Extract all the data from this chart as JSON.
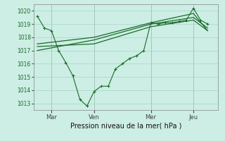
{
  "xlabel": "Pression niveau de la mer( hPa )",
  "background_color": "#cceee4",
  "grid_color": "#aad4c8",
  "line_color": "#1a6b2a",
  "ylim": [
    1012.5,
    1020.5
  ],
  "yticks": [
    1013,
    1014,
    1015,
    1016,
    1017,
    1018,
    1019,
    1020
  ],
  "xtick_labels": [
    "Mar",
    "Ven",
    "Mer",
    "Jeu"
  ],
  "xtick_positions": [
    2,
    8,
    16,
    22
  ],
  "xlim": [
    -0.5,
    25.5
  ],
  "line1_x": [
    0,
    1,
    2,
    3,
    4,
    5,
    6,
    7,
    8,
    9,
    10,
    11,
    12,
    13,
    14,
    15,
    16,
    17,
    18,
    19,
    20,
    21,
    22,
    23,
    24
  ],
  "line1_y": [
    1019.6,
    1018.7,
    1018.5,
    1017.0,
    1016.1,
    1015.1,
    1013.3,
    1012.8,
    1013.9,
    1014.3,
    1014.3,
    1015.6,
    1016.0,
    1016.4,
    1016.6,
    1017.0,
    1019.1,
    1019.0,
    1019.1,
    1019.1,
    1019.2,
    1019.3,
    1020.2,
    1019.3,
    1019.0
  ],
  "line2_x": [
    0,
    8,
    16,
    22,
    24
  ],
  "line2_y": [
    1017.3,
    1017.5,
    1018.8,
    1019.3,
    1018.5
  ],
  "line3_x": [
    0,
    8,
    16,
    22,
    24
  ],
  "line3_y": [
    1017.0,
    1017.8,
    1019.0,
    1019.5,
    1018.7
  ],
  "line4_x": [
    0,
    8,
    16,
    22,
    24
  ],
  "line4_y": [
    1017.5,
    1018.0,
    1019.1,
    1019.8,
    1018.5
  ],
  "vline_positions": [
    2,
    8,
    16,
    22
  ]
}
